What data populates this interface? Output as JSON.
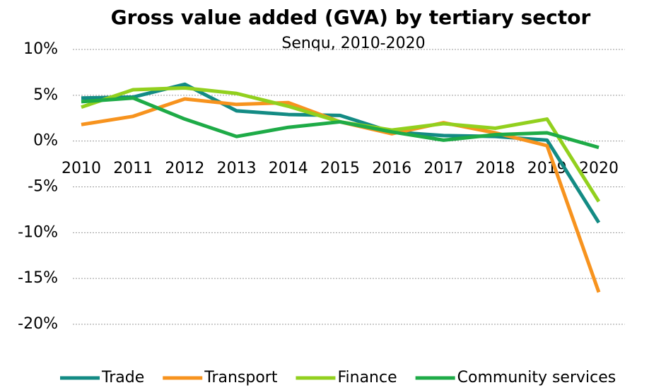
{
  "chart_data": {
    "type": "line",
    "title": "Gross value added (GVA) by tertiary sector",
    "subtitle": "Senqu, 2010-2020",
    "categories": [
      "2010",
      "2011",
      "2012",
      "2013",
      "2014",
      "2015",
      "2016",
      "2017",
      "2018",
      "2019",
      "2020"
    ],
    "series": [
      {
        "name": "Trade",
        "color": "#138b84",
        "values": [
          4.7,
          4.8,
          6.2,
          3.3,
          2.9,
          2.8,
          1.0,
          0.6,
          0.5,
          0.1,
          -8.9
        ]
      },
      {
        "name": "Transport",
        "color": "#f7931e",
        "values": [
          1.8,
          2.7,
          4.6,
          4.0,
          4.2,
          2.1,
          0.8,
          2.0,
          0.9,
          -0.5,
          -16.5
        ]
      },
      {
        "name": "Finance",
        "color": "#92d01e",
        "values": [
          3.7,
          5.6,
          5.8,
          5.2,
          3.8,
          2.1,
          1.2,
          1.9,
          1.4,
          2.4,
          -6.6
        ]
      },
      {
        "name": "Community services",
        "color": "#1eab47",
        "values": [
          4.3,
          4.7,
          2.4,
          0.5,
          1.5,
          2.1,
          1.0,
          0.1,
          0.7,
          0.9,
          -0.7
        ]
      }
    ],
    "ylim": [
      -20,
      10
    ],
    "yticks": [
      {
        "value": -20,
        "label": "-20%"
      },
      {
        "value": -15,
        "label": "-15%"
      },
      {
        "value": -10,
        "label": "-10%"
      },
      {
        "value": -5,
        "label": "-5%"
      },
      {
        "value": 0,
        "label": "0%"
      },
      {
        "value": 5,
        "label": "5%"
      },
      {
        "value": 10,
        "label": "10%"
      }
    ],
    "grid": true
  }
}
